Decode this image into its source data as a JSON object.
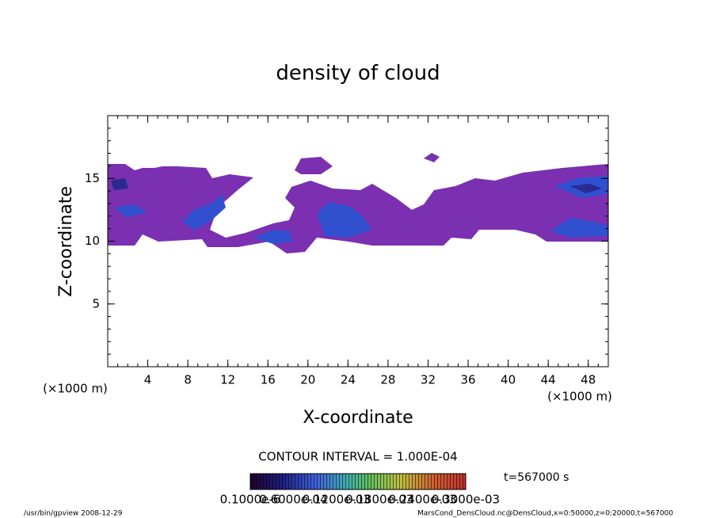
{
  "chart_data": {
    "type": "contour",
    "title": "density of cloud",
    "xlabel": "X-coordinate",
    "ylabel": "Z-coordinate",
    "xunit": "(×1000 m)",
    "xlim": [
      0,
      50
    ],
    "xticks": [
      4,
      8,
      12,
      16,
      20,
      24,
      28,
      32,
      36,
      40,
      44,
      48
    ],
    "ylim": [
      0,
      20
    ],
    "yticks": [
      5,
      10,
      15
    ],
    "contour_interval": "CONTOUR INTERVAL = 1.000E-04",
    "time": "t=567000 s",
    "colorbar_labels": [
      "0.1000e-6",
      "0.6000e-04",
      "0.1200e-03",
      "0.1800e-03",
      "0.2400e-03",
      "0.3000e-03"
    ],
    "footer_left": "/usr/bin/gpview   2008-12-29",
    "footer_right": "MarsCond_DensCloud.nc@DensCloud,x=0:50000,z=0:20000,t=567000"
  }
}
